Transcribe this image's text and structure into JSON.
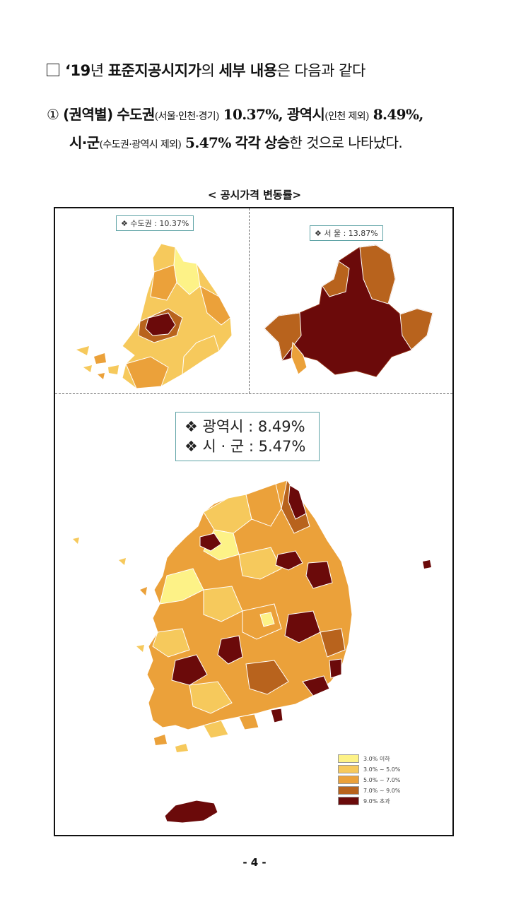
{
  "doc": {
    "line1": {
      "prefix": "‘19",
      "year_suffix": "년 ",
      "term": "표준지공시지가",
      "rest_a": "의 ",
      "bold_b": "세부 내용",
      "rest_b": "은 다음과 같다"
    },
    "line2": {
      "num": "①",
      "region_label": "(권역별)",
      "capital": "수도권",
      "capital_note": "(서울·인천·경기)",
      "capital_rate": "10.37%,",
      "metro": "광역시",
      "metro_note": "(인천 제외)",
      "metro_rate": "8.49%,"
    },
    "line3": {
      "city": "시·군",
      "city_note": "(수도권·광역시 제외)",
      "city_rate": "5.47%",
      "each": "각각",
      "rise": "상승",
      "rest": "한 것으로 나타났다."
    },
    "caption": "< 공시가격 변동률>",
    "page_number": "- 4 -"
  },
  "maps": {
    "capital_label": "❖ 수도권 : 10.37%",
    "seoul_label": "❖ 서 울 : 13.87%",
    "nation_label_line1": "❖ 광역시 : 8.49%",
    "nation_label_line2": "❖ 시 · 군 : 5.47%"
  },
  "legend": {
    "items": [
      {
        "label": "3.0% 이하",
        "color": "#fdf287"
      },
      {
        "label": "3.0% ~ 5.0%",
        "color": "#f6c95c"
      },
      {
        "label": "5.0% ~ 7.0%",
        "color": "#eba13a"
      },
      {
        "label": "7.0% ~ 9.0%",
        "color": "#b8631d"
      },
      {
        "label": "9.0% 초과",
        "color": "#6b0a0a"
      }
    ]
  }
}
